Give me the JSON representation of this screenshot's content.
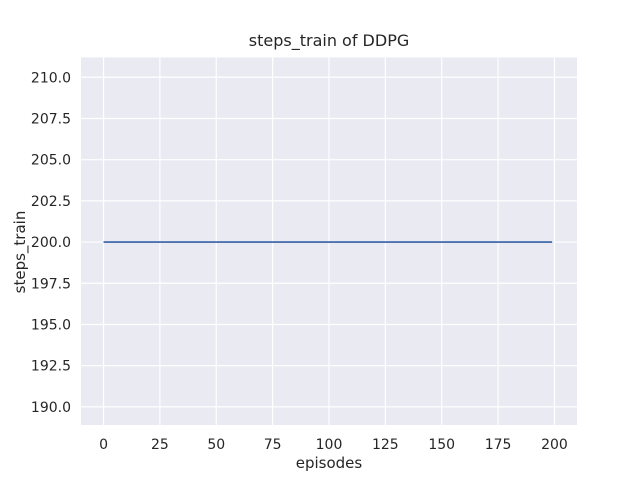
{
  "style": {
    "figure_bg": "#ffffff",
    "axes_bg": "#eaeaf2",
    "grid_color": "#ffffff",
    "text_color": "#262626",
    "line_color": "#4c72b0"
  },
  "chart_data": {
    "type": "line",
    "title": "steps_train of DDPG",
    "xlabel": "episodes",
    "ylabel": "steps_train",
    "x_ticks": [
      0,
      25,
      50,
      75,
      100,
      125,
      150,
      175,
      200
    ],
    "y_ticks": [
      190.0,
      192.5,
      195.0,
      197.5,
      200.0,
      202.5,
      205.0,
      207.5,
      210.0
    ],
    "y_tick_decimals": 1,
    "xlim": [
      -10,
      210
    ],
    "ylim": [
      188.9,
      211.2
    ],
    "grid": true,
    "legend": false,
    "series": [
      {
        "name": "steps_train",
        "color": "#4c72b0",
        "x": [
          0,
          199
        ],
        "y": [
          200,
          200
        ]
      }
    ]
  }
}
